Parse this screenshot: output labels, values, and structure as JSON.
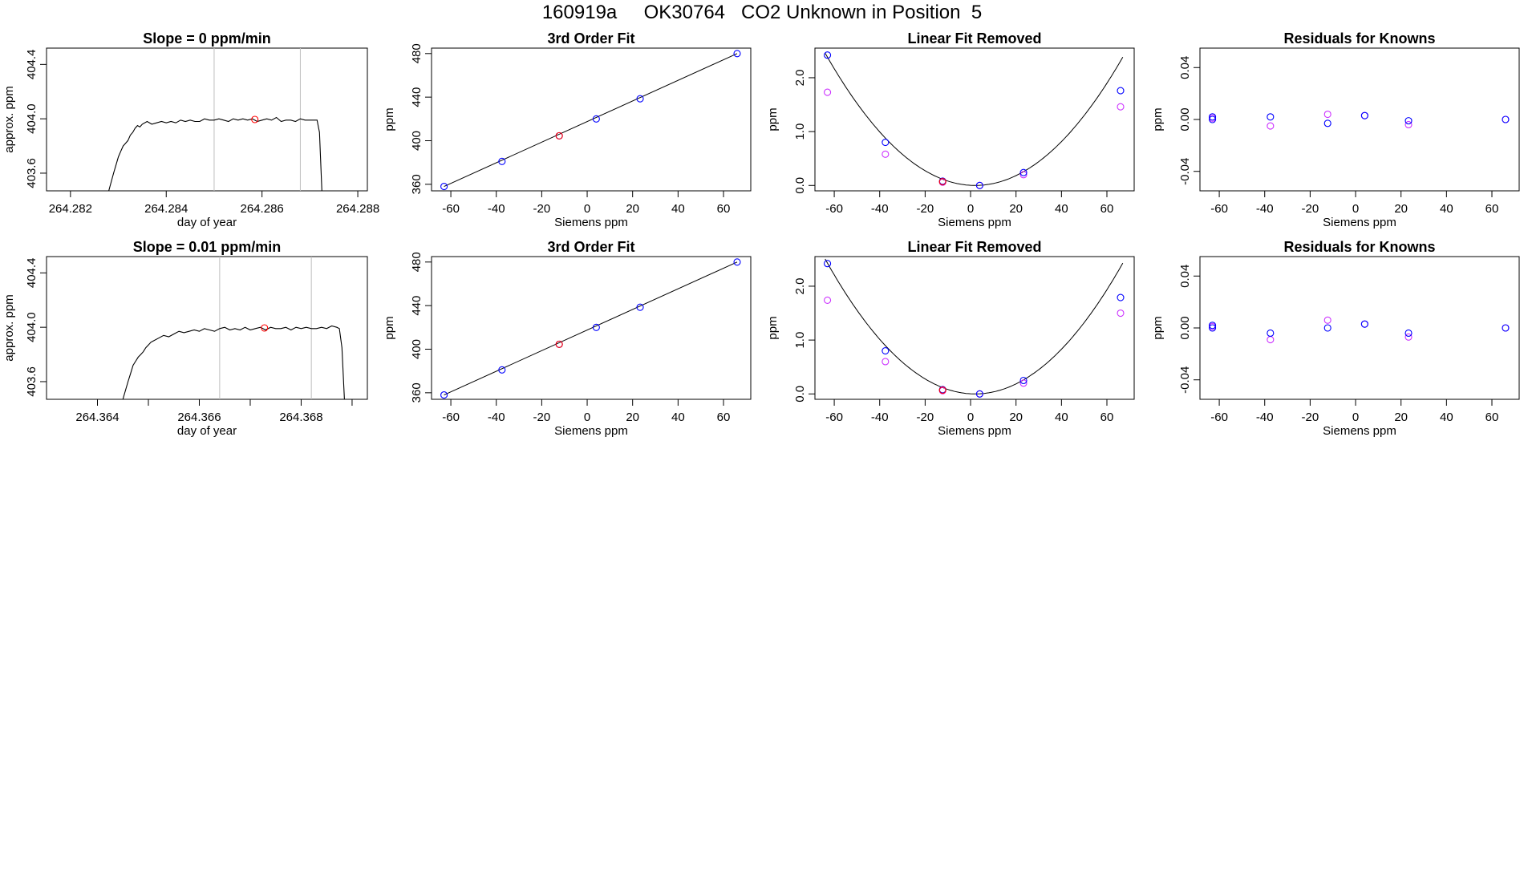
{
  "page_title": "160919a     OK30764   CO2 Unknown in Position  5",
  "colors": {
    "trace": "#000000",
    "marker_red": "#ff0000",
    "marker_blue": "#0000ff",
    "marker_magenta": "#cc33ff",
    "vline": "#bebebe",
    "fit_line": "#000000"
  },
  "chart_data": [
    {
      "type": "line",
      "title": "Slope =  0  ppm/min",
      "xlabel": "day of year",
      "ylabel": "approx. ppm",
      "xlim": [
        264.2815,
        264.2882
      ],
      "ylim": [
        403.47,
        404.52
      ],
      "xticks": [
        264.282,
        264.284,
        264.286,
        264.288
      ],
      "xtick_labels": [
        "264.282",
        "264.284",
        "264.286",
        "264.288"
      ],
      "yticks": [
        403.6,
        404.0,
        404.4
      ],
      "ytick_labels": [
        "403.6",
        "404.0",
        "404.4"
      ],
      "trace": {
        "x": [
          264.2828,
          264.2829,
          264.28295,
          264.283,
          264.28305,
          264.2831,
          264.28315,
          264.2832,
          264.28325,
          264.2833,
          264.28335,
          264.2834,
          264.28345,
          264.2835,
          264.2836,
          264.2837,
          264.2838,
          264.2839,
          264.284,
          264.2841,
          264.2842,
          264.2843,
          264.2844,
          264.2845,
          264.2846,
          264.2847,
          264.2848,
          264.2849,
          264.285,
          264.2851,
          264.2852,
          264.2853,
          264.2854,
          264.2855,
          264.2856,
          264.2857,
          264.2858,
          264.2859,
          264.286,
          264.2861,
          264.2862,
          264.2863,
          264.2864,
          264.2865,
          264.2866,
          264.2867,
          264.2868,
          264.2869,
          264.287,
          264.2871,
          264.28715,
          264.2872,
          264.28725
        ],
        "y": [
          403.47,
          403.6,
          403.66,
          403.72,
          403.76,
          403.8,
          403.82,
          403.84,
          403.88,
          403.9,
          403.93,
          403.95,
          403.94,
          403.96,
          403.98,
          403.96,
          403.97,
          403.98,
          403.97,
          403.98,
          403.97,
          403.99,
          403.98,
          403.99,
          403.98,
          403.98,
          404.0,
          403.99,
          403.99,
          404.0,
          403.99,
          403.98,
          404.0,
          403.99,
          404.0,
          403.99,
          404.0,
          403.98,
          403.99,
          404.0,
          403.99,
          404.01,
          403.98,
          403.99,
          403.99,
          403.98,
          404.0,
          403.99,
          403.99,
          403.99,
          403.99,
          403.9,
          403.47
        ]
      },
      "vlines": [
        264.285,
        264.2868
      ],
      "marker": {
        "x": 264.28585,
        "y": 403.995
      }
    },
    {
      "type": "scatter",
      "title": "3rd Order Fit",
      "xlabel": "Siemens ppm",
      "ylabel": "ppm",
      "xlim": [
        -68.5,
        72
      ],
      "ylim": [
        354,
        485
      ],
      "xticks": [
        -60,
        -40,
        -20,
        0,
        20,
        40,
        60
      ],
      "xtick_labels": [
        "-60",
        "-40",
        "-20",
        "0",
        "20",
        "40",
        "60"
      ],
      "yticks": [
        360,
        400,
        440,
        480
      ],
      "ytick_labels": [
        "360",
        "400",
        "440",
        "480"
      ],
      "fit": {
        "x": [
          -63,
          66
        ],
        "y": [
          358,
          480
        ]
      },
      "points_blue": {
        "x": [
          -63,
          -37.5,
          -12.3,
          4,
          23.3,
          66
        ],
        "y": [
          358,
          381,
          404.5,
          420,
          438.5,
          480
        ]
      },
      "points_red": {
        "x": [
          -12.3
        ],
        "y": [
          404.5
        ]
      }
    },
    {
      "type": "scatter",
      "title": "Linear Fit Removed",
      "xlabel": "Siemens ppm",
      "ylabel": "ppm",
      "xlim": [
        -68.5,
        72
      ],
      "ylim": [
        -0.1,
        2.55
      ],
      "xticks": [
        -60,
        -40,
        -20,
        0,
        20,
        40,
        60
      ],
      "xtick_labels": [
        "-60",
        "-40",
        "-20",
        "0",
        "20",
        "40",
        "60"
      ],
      "yticks": [
        0.0,
        1.0,
        2.0
      ],
      "ytick_labels": [
        "0.0",
        "1.0",
        "2.0"
      ],
      "curve": {
        "a": 0.000564,
        "x0": 2.0
      },
      "points_blue": {
        "x": [
          -63,
          -37.5,
          -12.3,
          4,
          23.3,
          66
        ],
        "y": [
          2.42,
          0.8,
          0.08,
          0.0,
          0.24,
          1.76
        ]
      },
      "points_magenta": {
        "x": [
          -63,
          -37.5,
          -12.3,
          4,
          23.3,
          66
        ],
        "y": [
          1.73,
          0.58,
          0.06,
          0.0,
          0.2,
          1.46
        ]
      },
      "points_red": {
        "x": [
          -12.3
        ],
        "y": [
          0.07
        ]
      }
    },
    {
      "type": "scatter",
      "title": "Residuals for Knowns",
      "xlabel": "Siemens ppm",
      "ylabel": "ppm",
      "xlim": [
        -68.5,
        72
      ],
      "ylim": [
        -0.055,
        0.055
      ],
      "xticks": [
        -60,
        -40,
        -20,
        0,
        20,
        40,
        60
      ],
      "xtick_labels": [
        "-60",
        "-40",
        "-20",
        "0",
        "20",
        "40",
        "60"
      ],
      "yticks": [
        -0.04,
        0.0,
        0.04
      ],
      "ytick_labels": [
        "-0.04",
        "0.00",
        "0.04"
      ],
      "points_blue": {
        "x": [
          -63,
          -63,
          -37.5,
          -12.3,
          4,
          23.3,
          66
        ],
        "y": [
          0.0,
          0.002,
          0.002,
          -0.003,
          0.003,
          -0.001,
          0.0
        ]
      },
      "points_magenta": {
        "x": [
          -63,
          -37.5,
          -12.3,
          4,
          23.3,
          66
        ],
        "y": [
          0.001,
          -0.005,
          0.004,
          0.003,
          -0.004,
          0.0
        ]
      }
    },
    {
      "type": "line",
      "title": "Slope =  0.01  ppm/min",
      "xlabel": "day of year",
      "ylabel": "approx. ppm",
      "xlim": [
        264.363,
        264.3693
      ],
      "ylim": [
        403.47,
        404.52
      ],
      "xticks": [
        264.364,
        264.365,
        264.366,
        264.367,
        264.368,
        264.369
      ],
      "xtick_labels": [
        "264.364",
        "",
        "264.366",
        "",
        "264.368",
        ""
      ],
      "yticks": [
        403.6,
        404.0,
        404.4
      ],
      "ytick_labels": [
        "403.6",
        "404.0",
        "404.4"
      ],
      "trace": {
        "x": [
          264.3645,
          264.3646,
          264.36465,
          264.3647,
          264.36475,
          264.3648,
          264.36485,
          264.3649,
          264.36495,
          264.365,
          264.36505,
          264.3651,
          264.3652,
          264.3653,
          264.3654,
          264.3655,
          264.3656,
          264.3657,
          264.3658,
          264.3659,
          264.366,
          264.3661,
          264.3662,
          264.3663,
          264.3664,
          264.3665,
          264.3666,
          264.3667,
          264.3668,
          264.3669,
          264.367,
          264.3671,
          264.3672,
          264.3673,
          264.3674,
          264.3675,
          264.3676,
          264.3677,
          264.3678,
          264.3679,
          264.368,
          264.3681,
          264.3682,
          264.3683,
          264.3684,
          264.3685,
          264.3686,
          264.3687,
          264.36875,
          264.3688,
          264.36885
        ],
        "y": [
          403.47,
          403.6,
          403.66,
          403.72,
          403.75,
          403.78,
          403.8,
          403.82,
          403.85,
          403.87,
          403.89,
          403.9,
          403.92,
          403.94,
          403.93,
          403.95,
          403.97,
          403.96,
          403.97,
          403.98,
          403.97,
          403.99,
          403.98,
          403.97,
          403.99,
          404.0,
          403.98,
          403.99,
          403.98,
          404.0,
          403.98,
          403.99,
          404.0,
          403.98,
          404.0,
          403.99,
          403.99,
          404.0,
          403.98,
          404.0,
          403.99,
          404.0,
          403.99,
          403.99,
          404.0,
          403.99,
          404.01,
          404.0,
          403.99,
          403.85,
          403.47
        ]
      },
      "vlines": [
        264.3664,
        264.3682
      ],
      "marker": {
        "x": 264.36728,
        "y": 403.995
      }
    },
    {
      "type": "scatter",
      "title": "3rd Order Fit",
      "xlabel": "Siemens ppm",
      "ylabel": "ppm",
      "xlim": [
        -68.5,
        72
      ],
      "ylim": [
        354,
        485
      ],
      "xticks": [
        -60,
        -40,
        -20,
        0,
        20,
        40,
        60
      ],
      "xtick_labels": [
        "-60",
        "-40",
        "-20",
        "0",
        "20",
        "40",
        "60"
      ],
      "yticks": [
        360,
        400,
        440,
        480
      ],
      "ytick_labels": [
        "360",
        "400",
        "440",
        "480"
      ],
      "fit": {
        "x": [
          -63,
          66
        ],
        "y": [
          358,
          480
        ]
      },
      "points_blue": {
        "x": [
          -63,
          -37.5,
          -12.3,
          4,
          23.3,
          66
        ],
        "y": [
          358,
          381,
          404.5,
          420,
          438.5,
          480
        ]
      },
      "points_red": {
        "x": [
          -12.3
        ],
        "y": [
          404.5
        ]
      }
    },
    {
      "type": "scatter",
      "title": "Linear Fit Removed",
      "xlabel": "Siemens ppm",
      "ylabel": "ppm",
      "xlim": [
        -68.5,
        72
      ],
      "ylim": [
        -0.1,
        2.55
      ],
      "xticks": [
        -60,
        -40,
        -20,
        0,
        20,
        40,
        60
      ],
      "xtick_labels": [
        "-60",
        "-40",
        "-20",
        "0",
        "20",
        "40",
        "60"
      ],
      "yticks": [
        0.0,
        1.0,
        2.0
      ],
      "ytick_labels": [
        "0.0",
        "1.0",
        "2.0"
      ],
      "curve": {
        "a": 0.000575,
        "x0": 2.0
      },
      "points_blue": {
        "x": [
          -63,
          -37.5,
          -12.3,
          4,
          23.3,
          66
        ],
        "y": [
          2.42,
          0.8,
          0.08,
          0.0,
          0.25,
          1.79
        ]
      },
      "points_magenta": {
        "x": [
          -63,
          -37.5,
          -12.3,
          4,
          23.3,
          66
        ],
        "y": [
          1.74,
          0.6,
          0.06,
          0.0,
          0.2,
          1.5
        ]
      },
      "points_red": {
        "x": [
          -12.3
        ],
        "y": [
          0.07
        ]
      }
    },
    {
      "type": "scatter",
      "title": "Residuals for Knowns",
      "xlabel": "Siemens ppm",
      "ylabel": "ppm",
      "xlim": [
        -68.5,
        72
      ],
      "ylim": [
        -0.055,
        0.055
      ],
      "xticks": [
        -60,
        -40,
        -20,
        0,
        20,
        40,
        60
      ],
      "xtick_labels": [
        "-60",
        "-40",
        "-20",
        "0",
        "20",
        "40",
        "60"
      ],
      "yticks": [
        -0.04,
        0.0,
        0.04
      ],
      "ytick_labels": [
        "-0.04",
        "0.00",
        "0.04"
      ],
      "points_blue": {
        "x": [
          -63,
          -63,
          -37.5,
          -12.3,
          4,
          23.3,
          66
        ],
        "y": [
          0.0,
          0.002,
          -0.004,
          0.0,
          0.003,
          -0.004,
          0.0
        ]
      },
      "points_magenta": {
        "x": [
          -63,
          -37.5,
          -12.3,
          4,
          23.3,
          66
        ],
        "y": [
          0.001,
          -0.009,
          0.006,
          0.003,
          -0.007,
          0.0
        ]
      }
    }
  ]
}
